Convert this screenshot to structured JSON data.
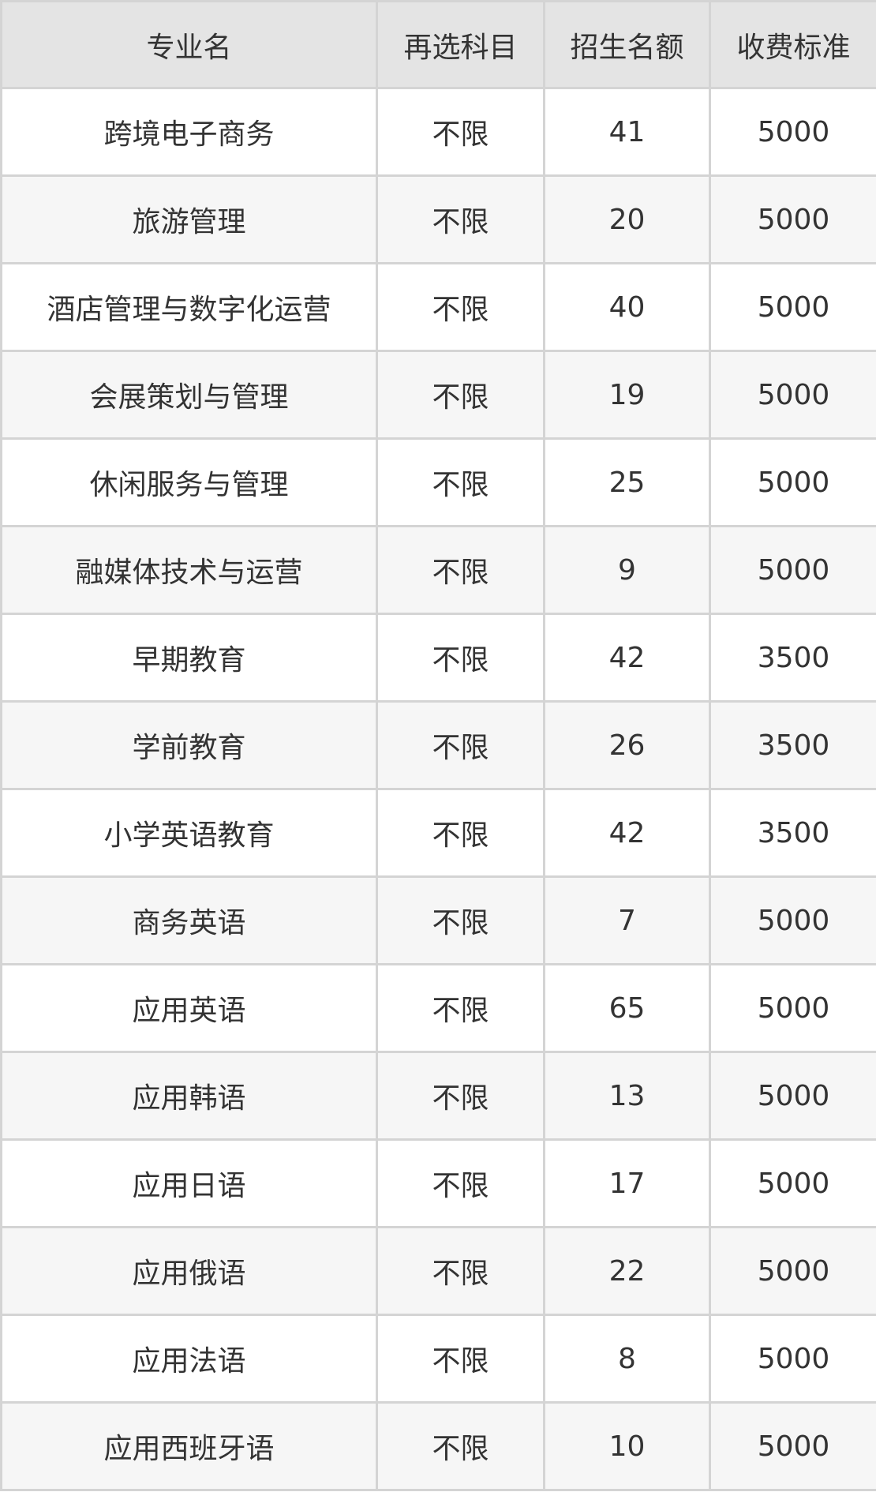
{
  "table": {
    "headers": [
      "专业名",
      "再选科目",
      "招生名额",
      "收费标准"
    ],
    "rows": [
      [
        "跨境电子商务",
        "不限",
        "41",
        "5000"
      ],
      [
        "旅游管理",
        "不限",
        "20",
        "5000"
      ],
      [
        "酒店管理与数字化运营",
        "不限",
        "40",
        "5000"
      ],
      [
        "会展策划与管理",
        "不限",
        "19",
        "5000"
      ],
      [
        "休闲服务与管理",
        "不限",
        "25",
        "5000"
      ],
      [
        "融媒体技术与运营",
        "不限",
        "9",
        "5000"
      ],
      [
        "早期教育",
        "不限",
        "42",
        "3500"
      ],
      [
        "学前教育",
        "不限",
        "26",
        "3500"
      ],
      [
        "小学英语教育",
        "不限",
        "42",
        "3500"
      ],
      [
        "商务英语",
        "不限",
        "7",
        "5000"
      ],
      [
        "应用英语",
        "不限",
        "65",
        "5000"
      ],
      [
        "应用韩语",
        "不限",
        "13",
        "5000"
      ],
      [
        "应用日语",
        "不限",
        "17",
        "5000"
      ],
      [
        "应用俄语",
        "不限",
        "22",
        "5000"
      ],
      [
        "应用法语",
        "不限",
        "8",
        "5000"
      ],
      [
        "应用西班牙语",
        "不限",
        "10",
        "5000"
      ]
    ]
  }
}
